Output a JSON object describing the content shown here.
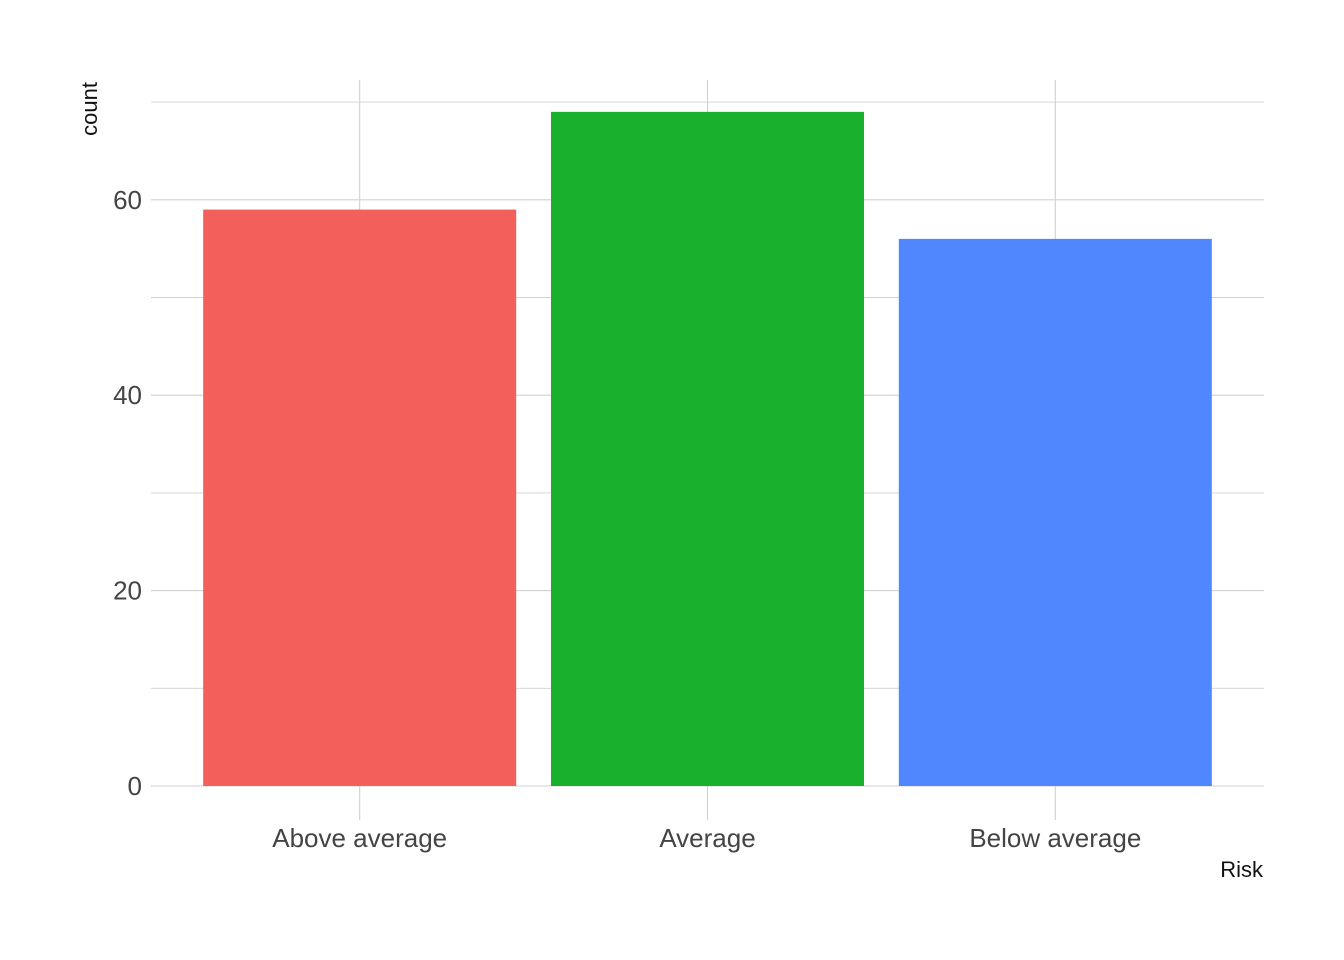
{
  "chart_data": {
    "type": "bar",
    "categories": [
      "Above average",
      "Average",
      "Below average"
    ],
    "values": [
      59,
      69,
      56
    ],
    "colors": [
      "#F35F5B",
      "#19B02E",
      "#5087FF"
    ],
    "xlabel": "Risk",
    "ylabel": "count",
    "ylim": [
      0,
      70
    ],
    "yticks": [
      0,
      20,
      40,
      60
    ],
    "yticks_minor": [
      10,
      30,
      50,
      70
    ],
    "grid": true,
    "legend": "none"
  }
}
